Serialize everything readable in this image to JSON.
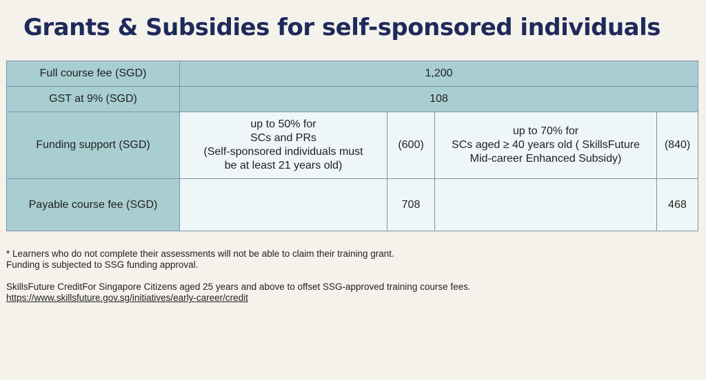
{
  "title": "Grants & Subsidies for self-sponsored individuals",
  "table": {
    "rows": [
      {
        "label": "Full course fee (SGD)",
        "value": "1,200"
      },
      {
        "label": "GST at 9% (SGD)",
        "value": "108"
      }
    ],
    "funding": {
      "label": "Funding support (SGD)",
      "option1": {
        "lines": [
          "up to 50% for",
          "SCs and PRs",
          "(Self-sponsored individuals must",
          "be at least 21 years old)"
        ],
        "amount": "(600)"
      },
      "option2": {
        "lines": [
          "up to 70% for",
          "SCs aged ≥ 40 years old ( SkillsFuture",
          "Mid-career Enhanced Subsidy)"
        ],
        "amount": "(840)"
      }
    },
    "payable": {
      "label": "Payable course fee (SGD)",
      "amount1": "708",
      "amount2": "468"
    }
  },
  "notes": {
    "line1": "* Learners who do not complete their assessments will not be able to claim their training grant.",
    "line2": "Funding is subjected to SSG funding approval.",
    "line3": "SkillsFuture CreditFor Singapore Citizens aged 25 years and above to offset SSG-approved training course fees.",
    "link": "https://www.skillsfuture.gov.sg/initiatives/early-career/credit "
  },
  "colors": {
    "title": "#1e2a5a",
    "header_cell": "#a9ced2",
    "body_cell": "#eef6f7",
    "background": "#f5f2ec"
  }
}
